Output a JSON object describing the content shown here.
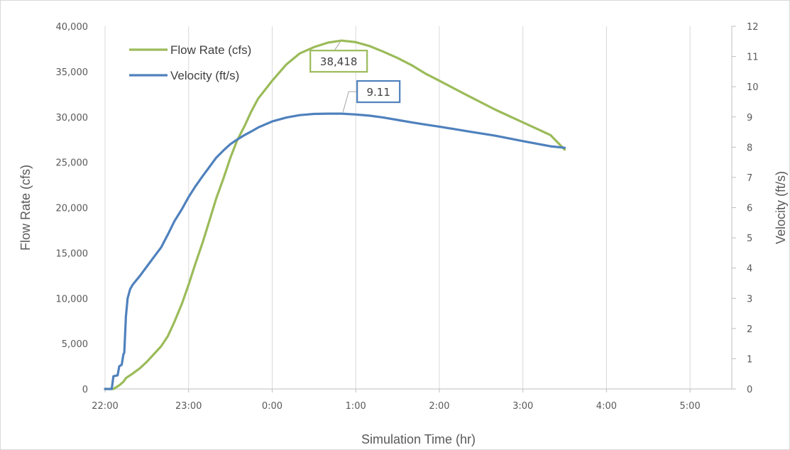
{
  "chart_data": {
    "type": "line",
    "title": "",
    "xlabel": "Simulation Time (hr)",
    "ylabel_left": "Flow Rate (cfs)",
    "ylabel_right": "Velocity (ft/s)",
    "x_ticks": [
      "22:00",
      "23:00",
      "0:00",
      "1:00",
      "2:00",
      "3:00",
      "4:00",
      "5:00"
    ],
    "x_range_hours": [
      22,
      29.5
    ],
    "y_left_range": [
      0,
      40000
    ],
    "y_left_ticks": [
      "0",
      "5,000",
      "10,000",
      "15,000",
      "20,000",
      "25,000",
      "30,000",
      "35,000",
      "40,000"
    ],
    "y_right_range": [
      0,
      12
    ],
    "y_right_ticks": [
      "0",
      "1",
      "2",
      "3",
      "4",
      "5",
      "6",
      "7",
      "8",
      "9",
      "10",
      "11",
      "12"
    ],
    "grid": "vertical",
    "legend_position": "top-left",
    "colors": {
      "flow": "#9bbb59",
      "velocity": "#4f81bd",
      "grid": "#d9d9d9",
      "axis": "#bfbfbf"
    },
    "series": [
      {
        "name": "Flow Rate (cfs)",
        "axis": "left",
        "color": "#9bbb59",
        "points": [
          [
            22.0,
            0
          ],
          [
            22.1,
            0
          ],
          [
            22.17,
            400
          ],
          [
            22.22,
            800
          ],
          [
            22.25,
            1200
          ],
          [
            22.33,
            1700
          ],
          [
            22.42,
            2300
          ],
          [
            22.5,
            3000
          ],
          [
            22.58,
            3800
          ],
          [
            22.67,
            4700
          ],
          [
            22.75,
            5800
          ],
          [
            22.83,
            7400
          ],
          [
            22.92,
            9400
          ],
          [
            23.0,
            11500
          ],
          [
            23.08,
            13800
          ],
          [
            23.17,
            16200
          ],
          [
            23.25,
            18600
          ],
          [
            23.33,
            21000
          ],
          [
            23.42,
            23300
          ],
          [
            23.5,
            25500
          ],
          [
            23.58,
            27400
          ],
          [
            23.67,
            29000
          ],
          [
            23.75,
            30600
          ],
          [
            23.83,
            32000
          ],
          [
            24.0,
            34000
          ],
          [
            24.17,
            35800
          ],
          [
            24.33,
            37000
          ],
          [
            24.5,
            37700
          ],
          [
            24.67,
            38200
          ],
          [
            24.83,
            38418
          ],
          [
            25.0,
            38250
          ],
          [
            25.17,
            37800
          ],
          [
            25.33,
            37200
          ],
          [
            25.5,
            36500
          ],
          [
            25.67,
            35700
          ],
          [
            25.83,
            34800
          ],
          [
            26.0,
            34000
          ],
          [
            26.33,
            32400
          ],
          [
            26.67,
            30800
          ],
          [
            27.0,
            29400
          ],
          [
            27.33,
            28000
          ],
          [
            27.5,
            26400
          ]
        ]
      },
      {
        "name": "Velocity (ft/s)",
        "axis": "right",
        "color": "#4f81bd",
        "points": [
          [
            22.0,
            0
          ],
          [
            22.08,
            0
          ],
          [
            22.1,
            0.42
          ],
          [
            22.15,
            0.45
          ],
          [
            22.17,
            0.75
          ],
          [
            22.2,
            0.8
          ],
          [
            22.22,
            1.15
          ],
          [
            22.23,
            1.2
          ],
          [
            22.25,
            2.4
          ],
          [
            22.27,
            3.0
          ],
          [
            22.28,
            3.1
          ],
          [
            22.3,
            3.3
          ],
          [
            22.33,
            3.45
          ],
          [
            22.42,
            3.75
          ],
          [
            22.5,
            4.05
          ],
          [
            22.58,
            4.35
          ],
          [
            22.67,
            4.68
          ],
          [
            22.75,
            5.1
          ],
          [
            22.83,
            5.55
          ],
          [
            22.92,
            5.95
          ],
          [
            23.0,
            6.35
          ],
          [
            23.08,
            6.7
          ],
          [
            23.17,
            7.05
          ],
          [
            23.25,
            7.35
          ],
          [
            23.33,
            7.65
          ],
          [
            23.42,
            7.9
          ],
          [
            23.5,
            8.1
          ],
          [
            23.58,
            8.25
          ],
          [
            23.67,
            8.4
          ],
          [
            23.75,
            8.52
          ],
          [
            23.83,
            8.65
          ],
          [
            24.0,
            8.85
          ],
          [
            24.17,
            8.98
          ],
          [
            24.33,
            9.06
          ],
          [
            24.5,
            9.1
          ],
          [
            24.67,
            9.11
          ],
          [
            24.83,
            9.11
          ],
          [
            25.0,
            9.08
          ],
          [
            25.17,
            9.04
          ],
          [
            25.33,
            8.98
          ],
          [
            25.5,
            8.9
          ],
          [
            25.67,
            8.82
          ],
          [
            25.83,
            8.75
          ],
          [
            26.0,
            8.68
          ],
          [
            26.33,
            8.53
          ],
          [
            26.67,
            8.38
          ],
          [
            27.0,
            8.2
          ],
          [
            27.33,
            8.03
          ],
          [
            27.5,
            7.98
          ]
        ]
      }
    ],
    "annotations": [
      {
        "series": "Flow Rate (cfs)",
        "text": "38,418",
        "x": 24.83,
        "y": 38418
      },
      {
        "series": "Velocity (ft/s)",
        "text": "9.11",
        "x": 24.83,
        "y": 9.11
      }
    ]
  }
}
